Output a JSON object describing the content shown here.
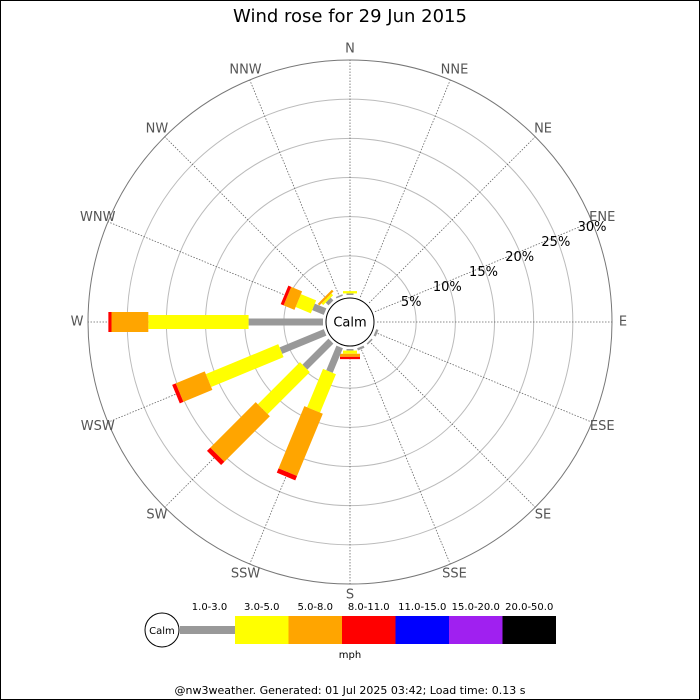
{
  "chart_data": {
    "type": "windrose",
    "title": "Wind rose for 29 Jun 2015",
    "center_label": "Calm",
    "directions": [
      "N",
      "NNE",
      "NE",
      "ENE",
      "E",
      "ESE",
      "SE",
      "SSE",
      "S",
      "SSW",
      "SW",
      "WSW",
      "W",
      "WNW",
      "NW",
      "NNW"
    ],
    "series": [
      {
        "name": "1.0-3.0",
        "color": "#999999",
        "values": [
          0.2,
          0,
          0,
          0,
          0,
          0.3,
          0.2,
          0.3,
          0.2,
          3.4,
          4.7,
          6.1,
          9.5,
          1.6,
          0.5,
          0.2
        ]
      },
      {
        "name": "3.0-5.0",
        "color": "#ffff00",
        "values": [
          0.3,
          0,
          0,
          0,
          0,
          0,
          0,
          0,
          0.4,
          5.3,
          7.6,
          10,
          12.8,
          2.1,
          0.3,
          0
        ]
      },
      {
        "name": "5.0-8.0",
        "color": "#ffa500",
        "values": [
          0,
          0,
          0,
          0,
          0,
          0,
          0,
          0,
          0.4,
          8.6,
          8.2,
          4,
          4.7,
          1.5,
          0.3,
          0
        ]
      },
      {
        "name": "8.0-11.0",
        "color": "#ff0000",
        "values": [
          0,
          0,
          0,
          0,
          0,
          0,
          0,
          0,
          0.3,
          0.6,
          0.6,
          0.5,
          0.4,
          0.4,
          0,
          0
        ]
      },
      {
        "name": "11.0-15.0",
        "color": "#0000ff",
        "values": [
          0,
          0,
          0,
          0,
          0,
          0,
          0,
          0,
          0,
          0,
          0,
          0,
          0,
          0,
          0,
          0
        ]
      },
      {
        "name": "15.0-20.0",
        "color": "#a020f0",
        "values": [
          0,
          0,
          0,
          0,
          0,
          0,
          0,
          0,
          0,
          0,
          0,
          0,
          0,
          0,
          0,
          0
        ]
      },
      {
        "name": "20.0-50.0",
        "color": "#000000",
        "values": [
          0,
          0,
          0,
          0,
          0,
          0,
          0,
          0,
          0,
          0,
          0,
          0,
          0,
          0,
          0,
          0
        ]
      }
    ],
    "rlim": [
      0,
      30
    ],
    "rticks": [
      {
        "value": 5,
        "label": "5%"
      },
      {
        "value": 10,
        "label": "10%"
      },
      {
        "value": 15,
        "label": "15%"
      },
      {
        "value": 20,
        "label": "20%"
      },
      {
        "value": 25,
        "label": "25%"
      },
      {
        "value": 30,
        "label": "30%"
      }
    ],
    "legend_unit": "mph",
    "footer": "@nw3weather. Generated: 01 Jul 2025 03:42; Load time: 0.13 s"
  }
}
